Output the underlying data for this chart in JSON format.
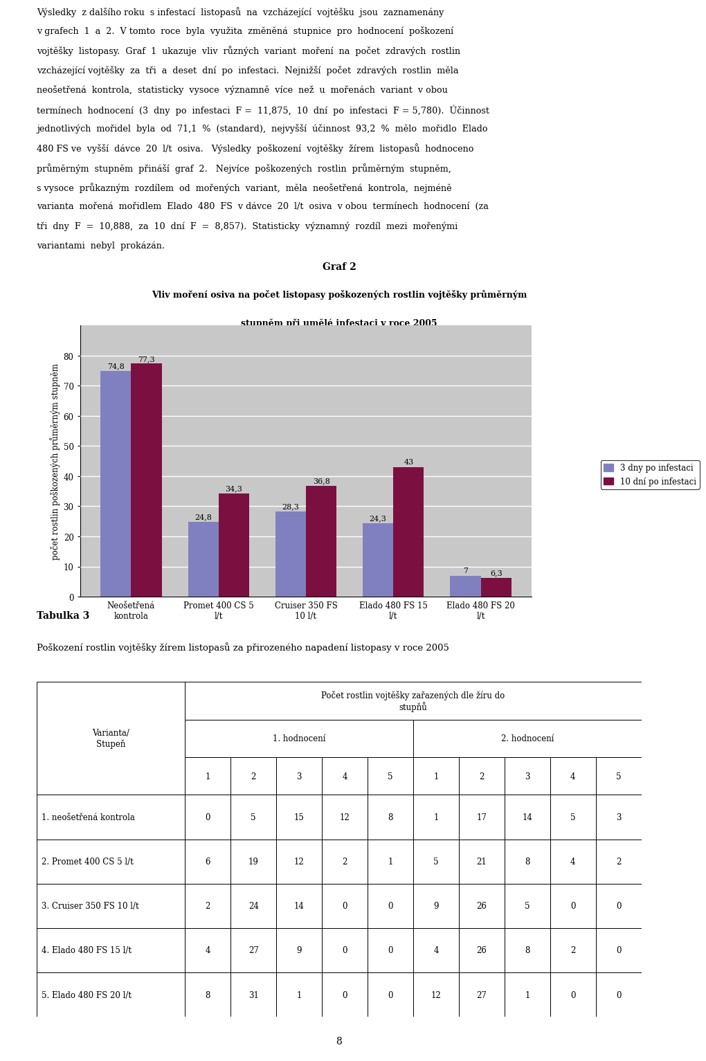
{
  "title_line1": "Graf 2",
  "title_line2": "Vliv moření osiva na počet listopasy poškozených rostlin vojtěšky průměrným",
  "title_line3": "stupněm při umělé infestaci v roce 2005",
  "categories": [
    "Neošetřená\nkontrola",
    "Promet 400 CS 5\nl/t",
    "Cruiser 350 FS\n10 l/t",
    "Elado 480 FS 15\nl/t",
    "Elado 480 FS 20\nl/t"
  ],
  "values_3day": [
    74.8,
    24.8,
    28.3,
    24.3,
    7.0
  ],
  "values_10day": [
    77.3,
    34.3,
    36.8,
    43.0,
    6.3
  ],
  "color_3day": "#8080C0",
  "color_10day": "#7B1040",
  "legend_3day": "3 dny po infestaci",
  "legend_10day": "10 dní po infestaci",
  "ylabel": "počet rostlin poškozených průměrným stupněm",
  "ylim": [
    0,
    90
  ],
  "yticks": [
    0,
    10,
    20,
    30,
    40,
    50,
    60,
    70,
    80
  ],
  "body_lines": [
    "Výsledky  z dalšího roku  s infestací  listopasů  na  vzcházející  vojtěšku  jsou  zaznamenány",
    "v grafech  1  a  2.  V tomto  roce  byla  využita  změněná  stupnice  pro  hodnocení  poškození",
    "vojtěšky  listopasy.  Graf  1  ukazuje  vliv  různých  variant  moření  na  počet  zdravých  rostlin",
    "vzcházející vojtěšky  za  tři  a  deset  dní  po  infestaci.  Nejnižší  počet  zdravých  rostlin  měla",
    "neošetřená  kontrola,  statisticky  vysoce  významně  více  než  u  mořenách  variant  v obou",
    "termínech  hodnocení  (3  dny  po  infestaci  F =  11,875,  10  dní  po  infestaci  F = 5,780).  Účinnost",
    "jednotlivých  mořidel  byla  od  71,1  %  (standard),  nejvyšší  účinnost  93,2  %  mělo  mořidlo  Elado",
    "480 FS ve  vyšší  dávce  20  l/t  osiva.   Výsledky  poškození  vojtěšky  žírem  listopasů  hodnoceno",
    "průměrným  stupněm  přináší  graf  2.   Nejvíce  poškozených  rostlin  průměrným  stupněm,",
    "s vysoce  průkazným  rozdílem  od  mořených  variant,  měla  neošetřená  kontrola,  nejméně",
    "varianta  mořená  mořidlem  Elado  480  FS  v dávce  20  l/t  osiva  v obou  termínech  hodnocení  (za",
    "tři  dny  F  =  10,888,  za  10  dní  F  =  8,857).  Statisticky  významný  rozdíl  mezi  mořenými",
    "variantami  nebyl  prokázán."
  ],
  "tabulka_title_line1": "Tabulka 3",
  "tabulka_title_line2": "Poškození rostlin vojtěšky žírem listopasů za přirozeného napadení listopasy v roce 2005",
  "table_row_labels": [
    "1. neošetřená kontrola",
    "2. Promet 400 CS 5 l/t",
    "3. Cruiser 350 FS 10 l/t",
    "4. Elado 480 FS 15 l/t",
    "5. Elado 480 FS 20 l/t"
  ],
  "table_data": [
    [
      0,
      5,
      15,
      12,
      8,
      1,
      17,
      14,
      5,
      3
    ],
    [
      6,
      19,
      12,
      2,
      1,
      5,
      21,
      8,
      4,
      2
    ],
    [
      2,
      24,
      14,
      0,
      0,
      9,
      26,
      5,
      0,
      0
    ],
    [
      4,
      27,
      9,
      0,
      0,
      4,
      26,
      8,
      2,
      0
    ],
    [
      8,
      31,
      1,
      0,
      0,
      12,
      27,
      1,
      0,
      0
    ]
  ],
  "page_number": "8"
}
